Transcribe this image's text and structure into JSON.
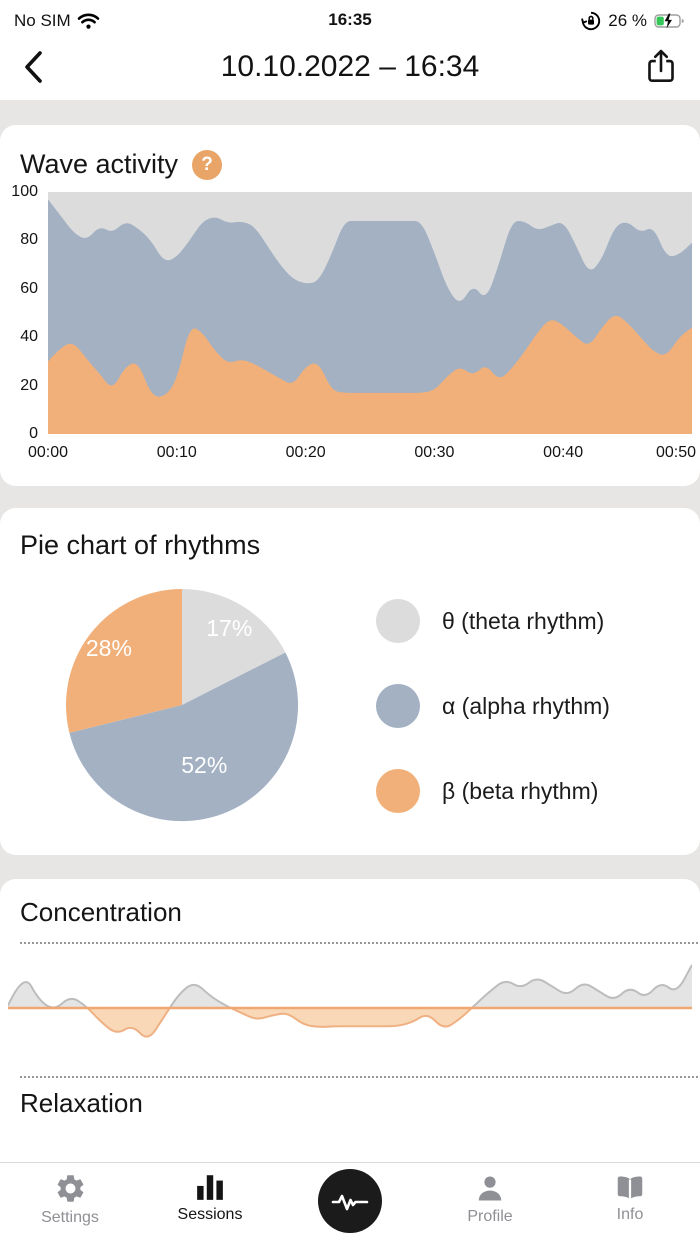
{
  "status_bar": {
    "carrier": "No SIM",
    "time": "16:35",
    "battery": "26 %",
    "icons": [
      "wifi-icon",
      "rotation-lock-icon",
      "battery-charging-icon"
    ]
  },
  "header": {
    "title": "10.10.2022 – 16:34",
    "back_icon": "back-chevron-icon",
    "share_icon": "share-icon"
  },
  "wave_activity": {
    "help_label": "?"
  },
  "relaxation": {
    "title": "Relaxation"
  },
  "tab_bar": {
    "items": [
      {
        "label": "Settings",
        "icon": "gear-icon",
        "active": false
      },
      {
        "label": "Sessions",
        "icon": "bar-chart-icon",
        "active": true
      },
      {
        "label": "Profile",
        "icon": "person-icon",
        "active": false
      },
      {
        "label": "Info",
        "icon": "book-icon",
        "active": false
      }
    ],
    "record_button_icon": "waveform-icon"
  },
  "chart_data": [
    {
      "type": "area",
      "title": "Wave activity",
      "stacked": true,
      "ylim": [
        0,
        100
      ],
      "y_ticks": [
        0,
        20,
        40,
        60,
        80,
        100
      ],
      "x_ticks": [
        "00:00",
        "00:10",
        "00:20",
        "00:30",
        "00:40",
        "00:50"
      ],
      "colors": {
        "theta": "#dcdcdc",
        "alpha": "#a3b1c3",
        "beta": "#f1b07a"
      },
      "legend_note": "beta band bottom (orange), alpha band middle (blue-gray), theta fills remainder to 100 (gray)",
      "beta_top": [
        30,
        36,
        38,
        31,
        25,
        18,
        28,
        30,
        16,
        15,
        22,
        45,
        42,
        34,
        29,
        31,
        29,
        26,
        23,
        20,
        28,
        30,
        18,
        17,
        17,
        17,
        17,
        17,
        17,
        17,
        18,
        24,
        28,
        24,
        29,
        22,
        27,
        34,
        42,
        48,
        45,
        40,
        36,
        44,
        50,
        46,
        40,
        34,
        32,
        40,
        44
      ],
      "alpha_top": [
        97,
        90,
        83,
        80,
        86,
        83,
        88,
        85,
        80,
        71,
        73,
        80,
        88,
        90,
        87,
        88,
        86,
        78,
        70,
        64,
        62,
        63,
        74,
        88,
        88,
        88,
        88,
        88,
        88,
        88,
        75,
        60,
        53,
        62,
        55,
        70,
        88,
        88,
        84,
        86,
        88,
        78,
        66,
        72,
        86,
        88,
        83,
        86,
        73,
        74,
        79
      ]
    },
    {
      "type": "pie",
      "title": "Pie chart of rhythms",
      "start_angle_deg": -90,
      "clockwise": true,
      "slices": [
        {
          "label": "θ (theta rhythm)",
          "pct_label": "17%",
          "value": 17,
          "color": "#dcdcdc"
        },
        {
          "label": "α (alpha rhythm)",
          "pct_label": "52%",
          "value": 52,
          "color": "#a3b1c3"
        },
        {
          "label": "β (beta rhythm)",
          "pct_label": "28%",
          "value": 28,
          "color": "#f1b07a"
        }
      ]
    },
    {
      "type": "line",
      "title": "Concentration",
      "baseline": 0,
      "values": [
        0.05,
        0.75,
        0.15,
        -0.05,
        0.25,
        0.05,
        -0.3,
        -0.55,
        -0.35,
        -0.7,
        -0.2,
        0.3,
        0.55,
        0.25,
        0.05,
        -0.1,
        -0.25,
        -0.15,
        -0.1,
        -0.35,
        -0.4,
        -0.38,
        -0.38,
        -0.38,
        -0.38,
        -0.38,
        -0.3,
        -0.1,
        -0.45,
        -0.25,
        0.05,
        0.35,
        0.6,
        0.4,
        0.65,
        0.45,
        0.25,
        0.55,
        0.35,
        0.15,
        0.45,
        0.2,
        0.55,
        0.3,
        0.9
      ],
      "above_fill": "#e4e4e4",
      "above_stroke": "#bdbdbd",
      "below_fill": "#f8d8b6",
      "below_stroke": "#efb183",
      "baseline_color": "#f0a771"
    }
  ]
}
